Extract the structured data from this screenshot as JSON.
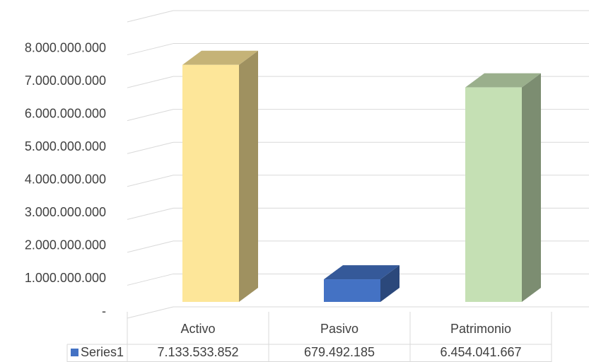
{
  "chart_data": {
    "type": "bar3d",
    "categories": [
      "Activo",
      "Pasivo",
      "Patrimonio"
    ],
    "series": [
      {
        "name": "Series1",
        "color": "#4472c4",
        "values": [
          7133533852,
          679492185,
          6454041667
        ],
        "value_labels": [
          "7.133.533.852",
          "679.492.185",
          "6.454.041.667"
        ]
      }
    ],
    "colors": [
      "#fde699",
      "#4472c4",
      "#c5e0b4"
    ],
    "ylim": [
      0,
      9000000000
    ],
    "yticks": [
      {
        "value": 0,
        "label": "-"
      },
      {
        "value": 1000000000,
        "label": "1.000.000.000"
      },
      {
        "value": 2000000000,
        "label": "2.000.000.000"
      },
      {
        "value": 3000000000,
        "label": "3.000.000.000"
      },
      {
        "value": 4000000000,
        "label": "4.000.000.000"
      },
      {
        "value": 5000000000,
        "label": "5.000.000.000"
      },
      {
        "value": 6000000000,
        "label": "6.000.000.000"
      },
      {
        "value": 7000000000,
        "label": "7.000.000.000"
      },
      {
        "value": 8000000000,
        "label": "8.000.000.000"
      }
    ],
    "grid": true,
    "data_table": true
  }
}
